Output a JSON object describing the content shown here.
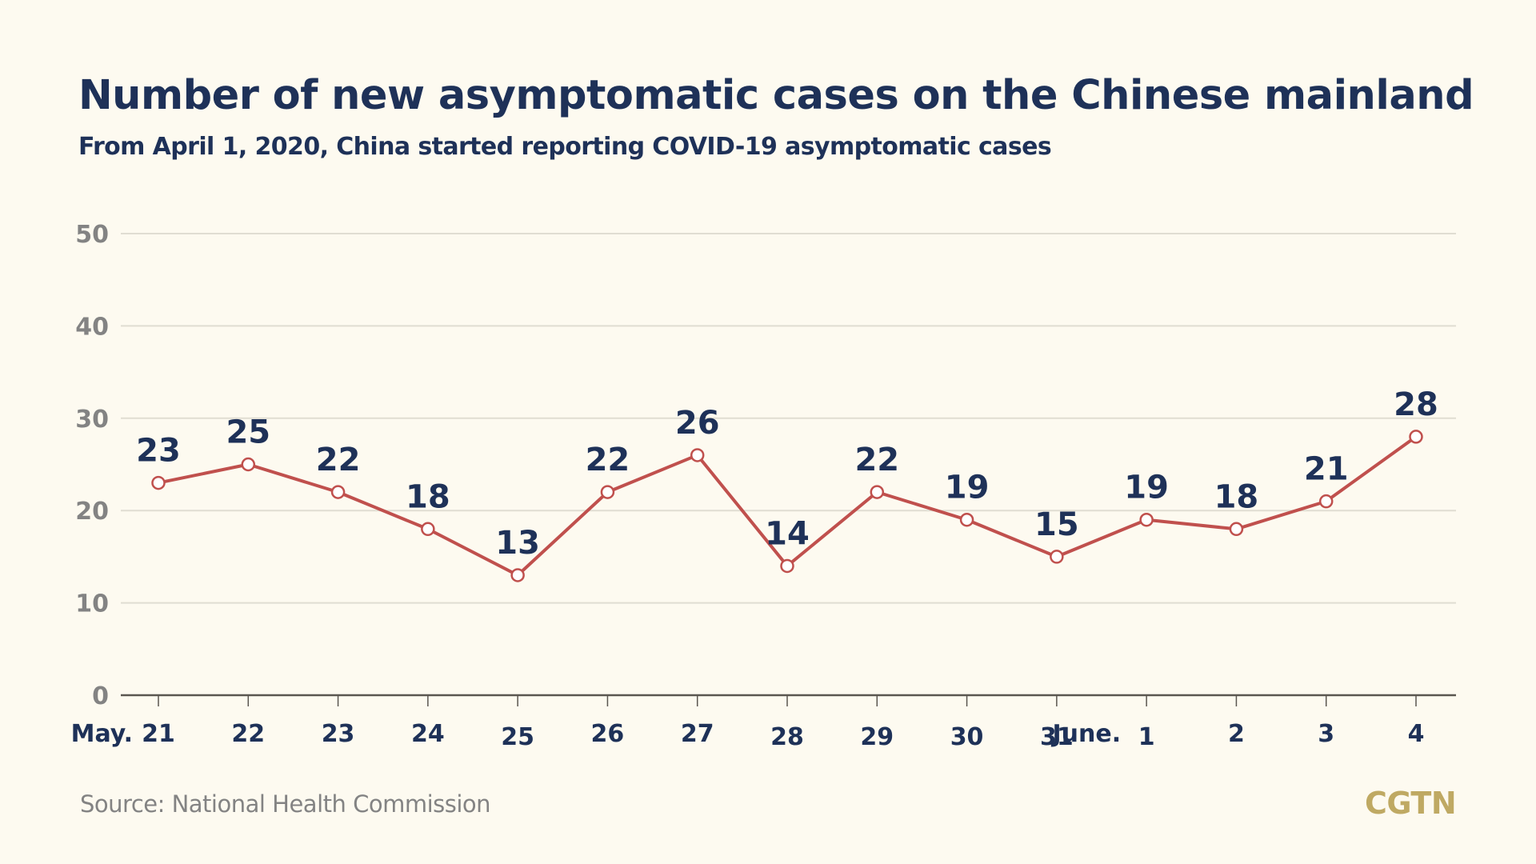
{
  "header": {
    "title": "Number of new asymptomatic cases on the Chinese mainland",
    "subtitle": "From April 1, 2020, China started reporting COVID-19 asymptomatic cases"
  },
  "footer": {
    "source": "Source: National Health Commission",
    "brand": "CGTN"
  },
  "colors": {
    "line": "#c0504d",
    "text_dark": "#1e3158",
    "axis_text": "#838383",
    "grid": "#e0ddd2",
    "background": "#fdfaf0",
    "brand": "#bfa963"
  },
  "chart_data": {
    "type": "line",
    "title": "Number of new asymptomatic cases on the Chinese mainland",
    "subtitle": "From April 1, 2020, China started reporting COVID-19 asymptomatic cases",
    "xlabel": "",
    "ylabel": "",
    "categories": [
      "21",
      "22",
      "23",
      "24",
      "25",
      "26",
      "27",
      "28",
      "29",
      "30",
      "31",
      "1",
      "2",
      "3",
      "4"
    ],
    "month_labels": [
      {
        "label": "May.",
        "at_index": 0
      },
      {
        "label": "June.",
        "at_index": 11
      }
    ],
    "series": [
      {
        "name": "New asymptomatic cases",
        "values": [
          23,
          25,
          22,
          18,
          13,
          22,
          26,
          14,
          22,
          19,
          15,
          19,
          18,
          21,
          28
        ],
        "color": "#c0504d",
        "markers": "hollow-circle",
        "data_labels": true
      }
    ],
    "ylim": [
      0,
      50
    ],
    "yticks": [
      0,
      10,
      20,
      30,
      40,
      50
    ],
    "grid": true,
    "legend": "none",
    "source": "Source: National Health Commission"
  }
}
